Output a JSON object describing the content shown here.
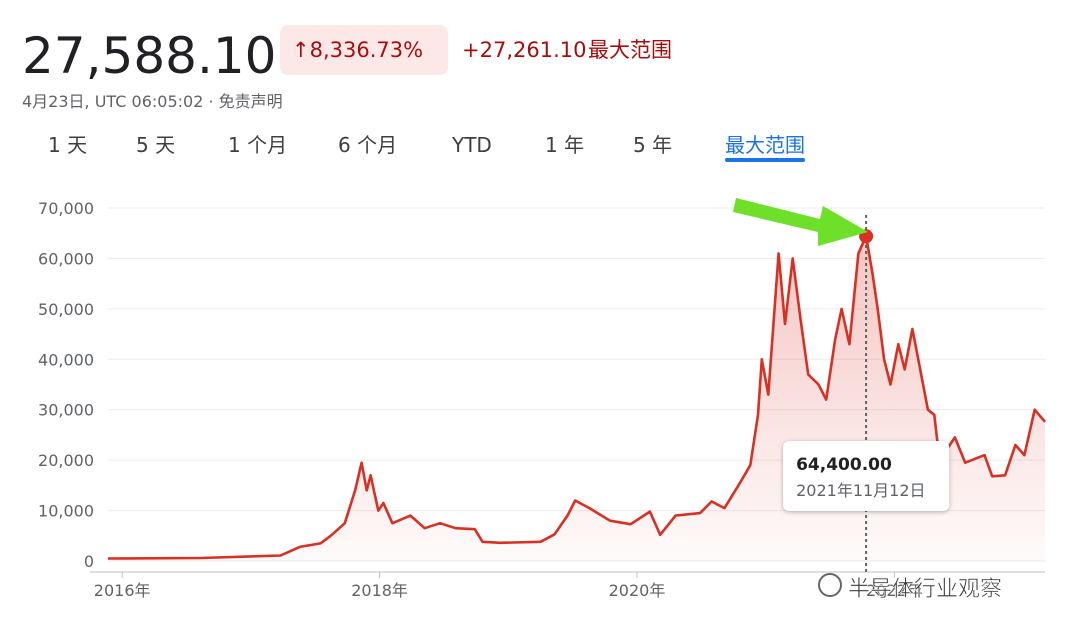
{
  "header": {
    "price": "27,588.10",
    "change_pct": "↑8,336.73%",
    "change_abs": "+27,261.10",
    "range_label": "最大范围",
    "timestamp": "4月23日, UTC 06:05:02 · 免责声明"
  },
  "tabs": [
    "1 天",
    "5 天",
    "1 个月",
    "6 个月",
    "YTD",
    "1 年",
    "5 年",
    "最大范围"
  ],
  "active_tab": 7,
  "tooltip": {
    "value": "64,400.00",
    "date": "2021年11月12日"
  },
  "watermark": "半导体行业观察",
  "chart_data": {
    "type": "line",
    "color": "#d93025",
    "grid": true,
    "x": [
      2015.89,
      2016.61,
      2017.23,
      2017.38,
      2017.54,
      2017.62,
      2017.73,
      2017.81,
      2017.86,
      2017.9,
      2017.93,
      2017.99,
      2018.03,
      2018.1,
      2018.24,
      2018.35,
      2018.47,
      2018.59,
      2018.74,
      2018.8,
      2018.94,
      2019.25,
      2019.36,
      2019.46,
      2019.52,
      2019.63,
      2019.79,
      2019.95,
      2020.1,
      2020.18,
      2020.3,
      2020.49,
      2020.58,
      2020.68,
      2020.8,
      2020.88,
      2020.94,
      2020.97,
      2021.02,
      2021.1,
      2021.15,
      2021.21,
      2021.27,
      2021.33,
      2021.41,
      2021.47,
      2021.54,
      2021.59,
      2021.65,
      2021.72,
      2021.78,
      2021.83,
      2021.87,
      2021.92,
      2021.97,
      2022.03,
      2022.08,
      2022.14,
      2022.2,
      2022.26,
      2022.31,
      2022.35,
      2022.47,
      2022.55,
      2022.7,
      2022.76,
      2022.86,
      2022.94,
      2023.01,
      2023.09,
      2023.17
    ],
    "values": [
      500,
      600,
      1100,
      2800,
      3500,
      5000,
      7500,
      14000,
      19500,
      14000,
      17000,
      10000,
      11500,
      7500,
      9000,
      6500,
      7500,
      6500,
      6300,
      3800,
      3600,
      3800,
      5300,
      9000,
      12000,
      10500,
      8000,
      7300,
      9800,
      5200,
      9000,
      9500,
      11800,
      10500,
      15500,
      19000,
      29000,
      40000,
      33000,
      61000,
      47000,
      60000,
      48000,
      37000,
      35000,
      32000,
      44000,
      50000,
      43000,
      61000,
      64400,
      57000,
      50000,
      40000,
      35000,
      43000,
      38000,
      46000,
      38000,
      30000,
      29000,
      20000,
      24500,
      19500,
      21000,
      16800,
      17000,
      23000,
      21000,
      30000,
      27600
    ],
    "xlim": [
      2015.89,
      2023.17
    ],
    "xticks": [
      {
        "value": 2016,
        "label": "2016年"
      },
      {
        "value": 2018,
        "label": "2018年"
      },
      {
        "value": 2020,
        "label": "2020年"
      },
      {
        "value": 2022,
        "label": "2022年"
      }
    ],
    "ylim": [
      0,
      70000
    ],
    "yticks": [
      0,
      {
        "value": 10000,
        "label": "10,000"
      },
      {
        "value": 20000,
        "label": "20,000"
      },
      {
        "value": 30000,
        "label": "30,000"
      },
      {
        "value": 40000,
        "label": "40,000"
      },
      {
        "value": 50000,
        "label": "50,000"
      },
      {
        "value": 60000,
        "label": "60,000"
      },
      {
        "value": 70000,
        "label": "70,000"
      }
    ]
  }
}
